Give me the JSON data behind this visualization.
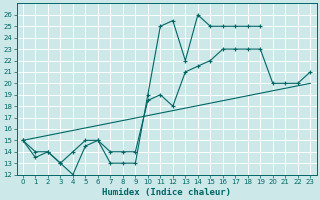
{
  "xlabel": "Humidex (Indice chaleur)",
  "bg_color": "#cde8e8",
  "grid_color": "#ffffff",
  "line_color": "#006666",
  "xlim": [
    -0.5,
    23.5
  ],
  "ylim": [
    12,
    27
  ],
  "xticks": [
    0,
    1,
    2,
    3,
    4,
    5,
    6,
    7,
    8,
    9,
    10,
    11,
    12,
    13,
    14,
    15,
    16,
    17,
    18,
    19,
    20,
    21,
    22,
    23
  ],
  "yticks": [
    12,
    13,
    14,
    15,
    16,
    17,
    18,
    19,
    20,
    21,
    22,
    23,
    24,
    25,
    26
  ],
  "series1_x": [
    0,
    1,
    2,
    3,
    4,
    5,
    6,
    7,
    8,
    9,
    10,
    11,
    12,
    13,
    14,
    15,
    16,
    17,
    18,
    19
  ],
  "series1_y": [
    15,
    13.5,
    14,
    13,
    12,
    14.5,
    15,
    13,
    13,
    13,
    19,
    25,
    25.5,
    22,
    26,
    25,
    25,
    25,
    25,
    25
  ],
  "series2_x": [
    0,
    1,
    2,
    3,
    4,
    5,
    6,
    7,
    8,
    9,
    10,
    11,
    12,
    13,
    14,
    15,
    16,
    17,
    18,
    19,
    20,
    21,
    22,
    23
  ],
  "series2_y": [
    15,
    14,
    14,
    13,
    14,
    15,
    15,
    14,
    14,
    14,
    18.5,
    19,
    18,
    21,
    21.5,
    22,
    23,
    23,
    23,
    23,
    20,
    20,
    20,
    21
  ],
  "series3_x": [
    0,
    23
  ],
  "series3_y": [
    15,
    20
  ]
}
